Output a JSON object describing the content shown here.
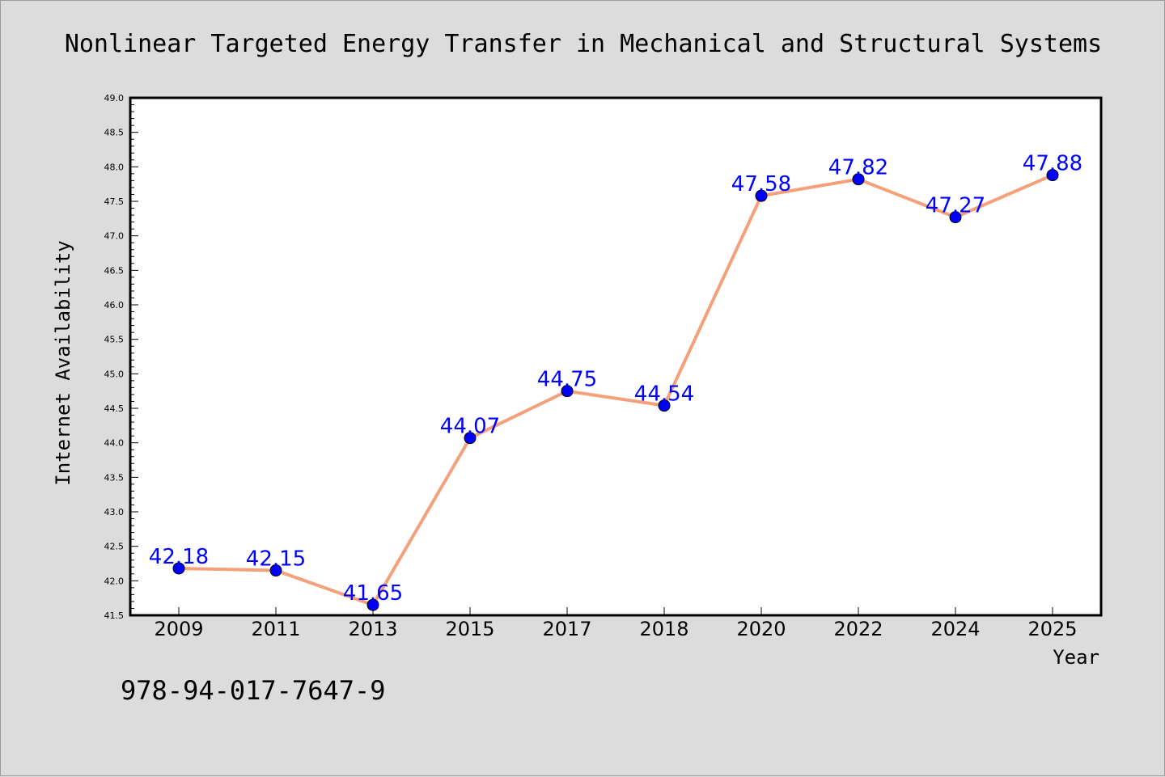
{
  "chart_data": {
    "type": "line",
    "title": "Nonlinear Targeted Energy Transfer in Mechanical and Structural Systems",
    "xlabel": "Year",
    "ylabel": "Internet Availability",
    "categories": [
      "2009",
      "2011",
      "2013",
      "2015",
      "2017",
      "2018",
      "2020",
      "2022",
      "2024",
      "2025"
    ],
    "series": [
      {
        "values": [
          42.18,
          42.15,
          41.65,
          44.07,
          44.75,
          44.54,
          47.58,
          47.82,
          47.27,
          47.88
        ],
        "data_labels": [
          "42.18",
          "42.15",
          "41.65",
          "44.07",
          "44.75",
          "44.54",
          "47.58",
          "47.82",
          "47.27",
          "47.88"
        ]
      }
    ],
    "ylim": [
      41.5,
      49.0
    ],
    "yticks": [
      "41.5",
      "42.0",
      "42.5",
      "43.0",
      "43.5",
      "44.0",
      "44.5",
      "45.0",
      "45.5",
      "46.0",
      "46.5",
      "47.0",
      "47.5",
      "48.0",
      "48.5",
      "49.0"
    ],
    "grid": false,
    "legend": "none",
    "colors": {
      "line": "#f4a07a",
      "marker": "#0000ff",
      "label": "#0000ff",
      "background": "#dcdcdc",
      "plot": "#ffffff"
    }
  },
  "footer_text": "978-94-017-7647-9"
}
